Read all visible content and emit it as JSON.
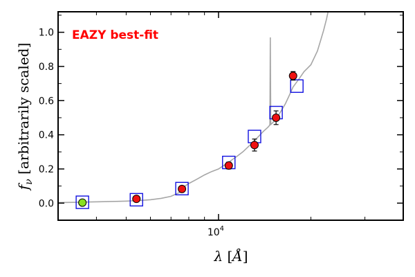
{
  "chart_data": {
    "type": "scatter",
    "title": "",
    "annotation": "EAZY best-fit",
    "annotation_color": "#ff0000",
    "xlabel": "λ [Å]",
    "ylabel": "f_ν [arbitrarily scaled]",
    "x_scale": "log",
    "xlim": [
      3000,
      40000
    ],
    "ylim": [
      -0.1,
      1.12
    ],
    "y_ticks": [
      0.0,
      0.2,
      0.4,
      0.6,
      0.8,
      1.0
    ],
    "y_tick_labels": [
      "0.0",
      "0.2",
      "0.4",
      "0.6",
      "0.8",
      "1.0"
    ],
    "x_tick_labels": [
      {
        "value": 10000,
        "base": "10",
        "exp": "4"
      }
    ],
    "grid": false,
    "colors": {
      "template": "#a6a6a6",
      "model_box": "#1010e0",
      "observed": "#ee1111",
      "observed_first": "#88e020",
      "errorbar": "#000000"
    },
    "series": [
      {
        "kind": "template_line",
        "x": [
          3000,
          3500,
          4000,
          4500,
          5000,
          5500,
          6000,
          6500,
          7000,
          7300,
          7600,
          7700,
          8000,
          8500,
          9000,
          9500,
          10000,
          10500,
          11000,
          11500,
          12000,
          12500,
          13000,
          13500,
          14000,
          14400,
          14600,
          14700,
          14750,
          14800,
          15000,
          15500,
          16000,
          16500,
          17000,
          17500,
          18000,
          18500,
          19000,
          19500,
          20000,
          21000,
          21500,
          22000,
          22500,
          23000
        ],
        "y": [
          0.003,
          0.005,
          0.008,
          0.01,
          0.012,
          0.015,
          0.02,
          0.028,
          0.04,
          0.055,
          0.07,
          0.095,
          0.115,
          0.14,
          0.165,
          0.185,
          0.2,
          0.225,
          0.25,
          0.275,
          0.3,
          0.33,
          0.36,
          0.39,
          0.42,
          0.44,
          0.45,
          0.46,
          0.97,
          0.46,
          0.47,
          0.5,
          0.54,
          0.58,
          0.63,
          0.68,
          0.71,
          0.74,
          0.77,
          0.79,
          0.81,
          0.89,
          0.95,
          1.01,
          1.08,
          1.16
        ]
      },
      {
        "kind": "model_photometry",
        "x": [
          3600,
          5400,
          7600,
          10800,
          13100,
          15400,
          18000
        ],
        "y": [
          0.005,
          0.02,
          0.085,
          0.238,
          0.39,
          0.53,
          0.685
        ]
      },
      {
        "kind": "observed",
        "x": [
          3600,
          5400,
          7600,
          10800,
          13100,
          15400,
          17500
        ],
        "y": [
          0.003,
          0.025,
          0.083,
          0.22,
          0.34,
          0.5,
          0.745
        ],
        "yerr": [
          0.004,
          0.006,
          0.01,
          0.02,
          0.035,
          0.04,
          0.025
        ]
      }
    ]
  }
}
